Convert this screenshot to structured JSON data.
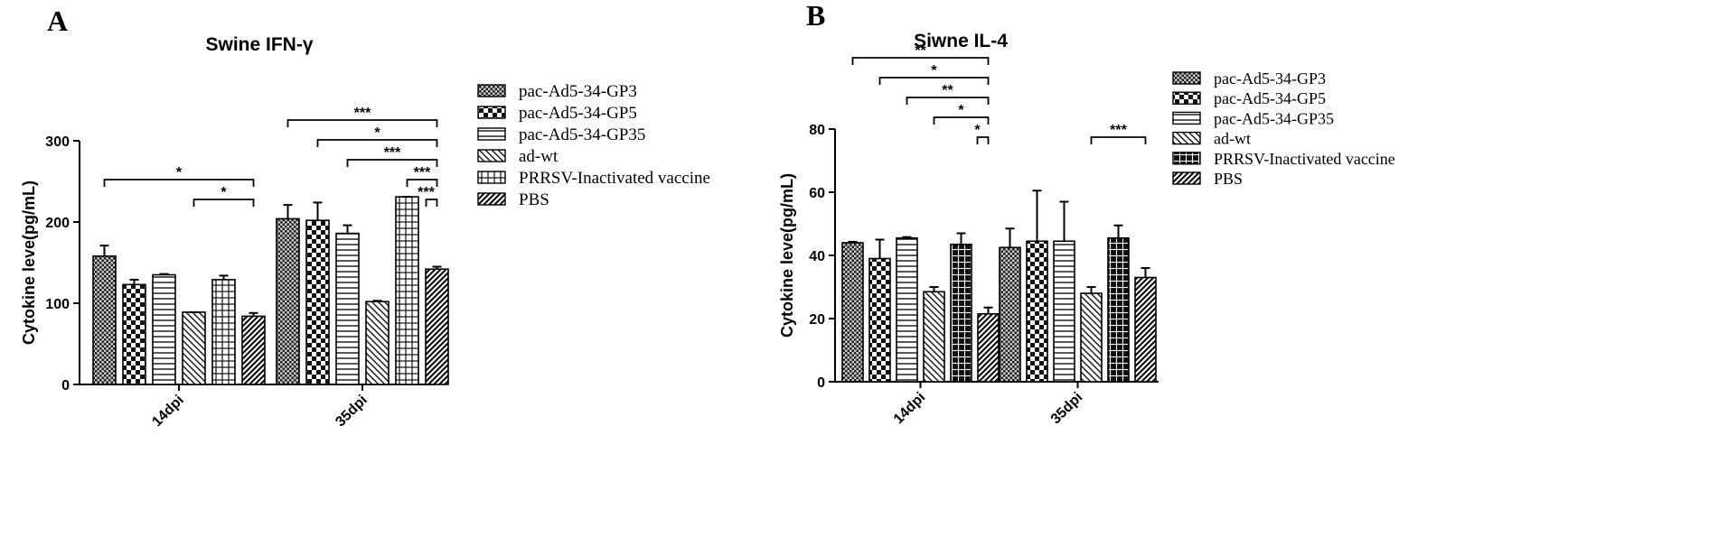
{
  "figure": {
    "panel_labels": [
      "A",
      "B"
    ]
  },
  "chart_data": [
    {
      "type": "bar",
      "panel": "A",
      "title": "Swine IFN-γ",
      "xlabel": "",
      "ylabel": "Cytokine leve(pg/mL)",
      "ylim": [
        0,
        300
      ],
      "yticks": [
        0,
        100,
        200,
        300
      ],
      "categories": [
        "14dpi",
        "35dpi"
      ],
      "grid": false,
      "legend_position": "right",
      "series": [
        {
          "name": "pac-Ad5-34-GP3",
          "values": [
            158,
            204
          ],
          "errors": [
            13,
            17
          ]
        },
        {
          "name": "pac-Ad5-34-GP5",
          "values": [
            123,
            202
          ],
          "errors": [
            6,
            22
          ]
        },
        {
          "name": "pac-Ad5-34-GP35",
          "values": [
            135,
            186
          ],
          "errors": [
            1,
            10
          ]
        },
        {
          "name": "ad-wt",
          "values": [
            89,
            102
          ],
          "errors": [
            0,
            1
          ]
        },
        {
          "name": "PRRSV-Inactivated vaccine",
          "values": [
            129,
            231
          ],
          "errors": [
            5,
            0
          ]
        },
        {
          "name": "PBS",
          "values": [
            84,
            142
          ],
          "errors": [
            4,
            3
          ]
        }
      ],
      "significance": [
        {
          "category": 0,
          "from": 0,
          "to": 5,
          "label": "*"
        },
        {
          "category": 0,
          "from": 3,
          "to": 5,
          "label": "*"
        },
        {
          "category": 1,
          "from": 0,
          "to": 5,
          "label": "***"
        },
        {
          "category": 1,
          "from": 1,
          "to": 5,
          "label": "*"
        },
        {
          "category": 1,
          "from": 2,
          "to": 5,
          "label": "***"
        },
        {
          "category": 1,
          "from": 4,
          "to": 5,
          "label": "***"
        },
        {
          "category": 1,
          "from": 5,
          "to": 5,
          "label": "***"
        }
      ]
    },
    {
      "type": "bar",
      "panel": "B",
      "title": "Siwne IL-4",
      "xlabel": "",
      "ylabel": "Cytokine leve(pg/mL)",
      "ylim": [
        0,
        80
      ],
      "yticks": [
        0,
        20,
        40,
        60,
        80
      ],
      "categories": [
        "14dpi",
        "35dpi"
      ],
      "grid": false,
      "legend_position": "right",
      "series": [
        {
          "name": "pac-Ad5-34-GP3",
          "values": [
            44,
            42.5
          ],
          "errors": [
            0.3,
            6
          ]
        },
        {
          "name": "pac-Ad5-34-GP5",
          "values": [
            39,
            44.5
          ],
          "errors": [
            6,
            16
          ]
        },
        {
          "name": "pac-Ad5-34-GP35",
          "values": [
            45.5,
            44.5
          ],
          "errors": [
            0.3,
            12.5
          ]
        },
        {
          "name": "ad-wt",
          "values": [
            28.5,
            28
          ],
          "errors": [
            1.5,
            2
          ]
        },
        {
          "name": "PRRSV-Inactivated vaccine",
          "values": [
            43.5,
            45.5
          ],
          "errors": [
            3.5,
            4
          ]
        },
        {
          "name": "PBS",
          "values": [
            21.5,
            33
          ],
          "errors": [
            2,
            3
          ]
        }
      ],
      "significance": [
        {
          "category": 0,
          "from": 0,
          "to": 5,
          "label": "**"
        },
        {
          "category": 0,
          "from": 1,
          "to": 5,
          "label": "*"
        },
        {
          "category": 0,
          "from": 2,
          "to": 5,
          "label": "**"
        },
        {
          "category": 0,
          "from": 3,
          "to": 5,
          "label": "*"
        },
        {
          "category": 0,
          "from": 5,
          "to": 5,
          "label": "*"
        },
        {
          "category": 1,
          "from": 3,
          "to": 5,
          "label": "***"
        }
      ]
    }
  ]
}
